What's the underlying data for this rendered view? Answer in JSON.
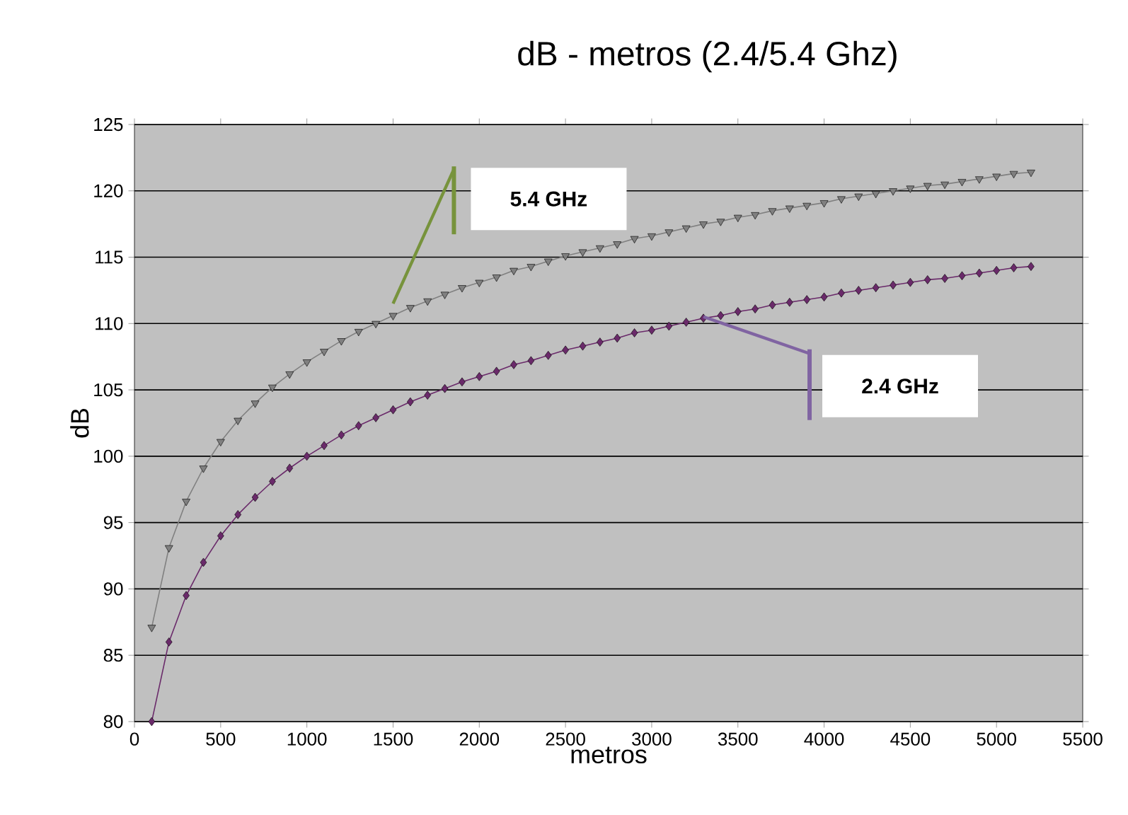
{
  "chart_data": {
    "type": "line",
    "title": "dB - metros (2.4/5.4 Ghz)",
    "xlabel": "metros",
    "ylabel": "dB",
    "x": [
      100,
      200,
      300,
      400,
      500,
      600,
      700,
      800,
      900,
      1000,
      1100,
      1200,
      1300,
      1400,
      1500,
      1600,
      1700,
      1800,
      1900,
      2000,
      2100,
      2200,
      2300,
      2400,
      2500,
      2600,
      2700,
      2800,
      2900,
      3000,
      3100,
      3200,
      3300,
      3400,
      3500,
      3600,
      3700,
      3800,
      3900,
      4000,
      4100,
      4200,
      4300,
      4400,
      4500,
      4600,
      4700,
      4800,
      4900,
      5000,
      5100,
      5200
    ],
    "series": [
      {
        "color": "#808080",
        "marker": "triangle",
        "values": [
          87.1,
          93.1,
          96.6,
          99.1,
          101.1,
          102.7,
          104.0,
          105.2,
          106.2,
          107.1,
          107.9,
          108.7,
          109.4,
          110.0,
          110.6,
          111.2,
          111.7,
          112.2,
          112.7,
          113.1,
          113.5,
          114.0,
          114.3,
          114.7,
          115.1,
          115.4,
          115.7,
          116.0,
          116.4,
          116.6,
          116.9,
          117.2,
          117.5,
          117.7,
          118.0,
          118.2,
          118.5,
          118.7,
          118.9,
          119.1,
          119.4,
          119.6,
          119.8,
          120.0,
          120.2,
          120.4,
          120.5,
          120.7,
          120.9,
          121.1,
          121.3,
          121.4
        ]
      },
      {
        "color": "#6a2a6a",
        "marker": "diamond",
        "values": [
          80.0,
          86.0,
          89.5,
          92.0,
          94.0,
          95.6,
          96.9,
          98.1,
          99.1,
          100.0,
          100.8,
          101.6,
          102.3,
          102.9,
          103.5,
          104.1,
          104.6,
          105.1,
          105.6,
          106.0,
          106.4,
          106.9,
          107.2,
          107.6,
          108.0,
          108.3,
          108.6,
          108.9,
          109.3,
          109.5,
          109.8,
          110.1,
          110.4,
          110.6,
          110.9,
          111.1,
          111.4,
          111.6,
          111.8,
          112.0,
          112.3,
          112.5,
          112.7,
          112.9,
          113.1,
          113.3,
          113.4,
          113.6,
          113.8,
          114.0,
          114.2,
          114.3
        ]
      }
    ],
    "annotations": [
      "5.4 GHz",
      "2.4 GHz"
    ],
    "xlim": [
      0,
      5500
    ],
    "ylim": [
      80,
      125
    ],
    "xticks": [
      0,
      500,
      1000,
      1500,
      2000,
      2500,
      3000,
      3500,
      4000,
      4500,
      5000,
      5500
    ],
    "yticks": [
      80,
      85,
      90,
      95,
      100,
      105,
      110,
      115,
      120,
      125
    ],
    "grid": "y"
  }
}
